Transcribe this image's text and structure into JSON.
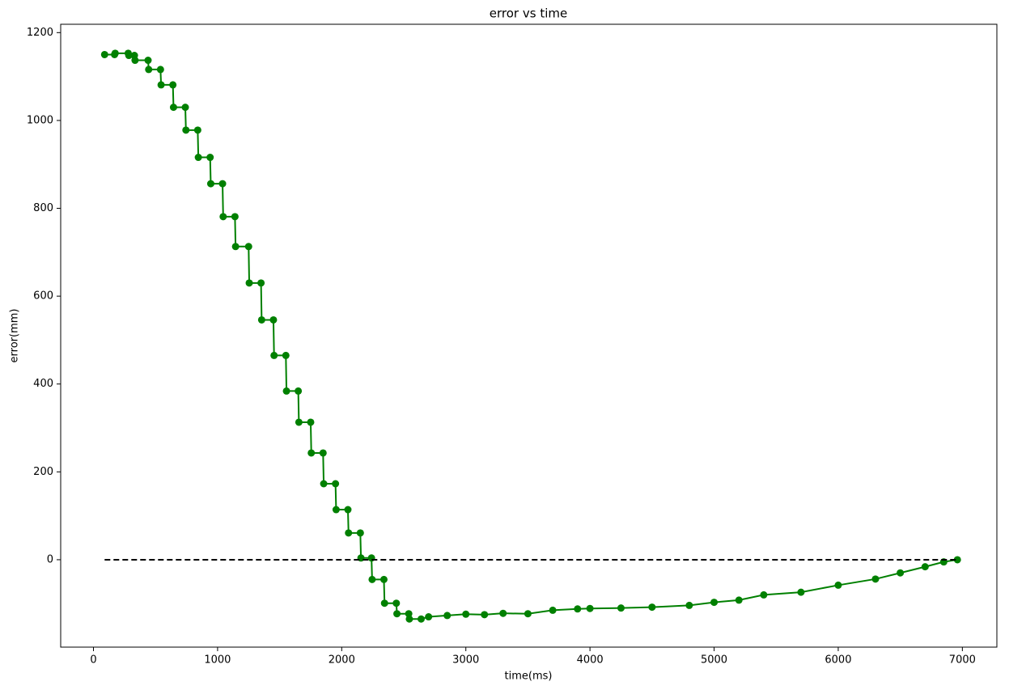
{
  "chart_data": {
    "type": "line",
    "title": "error vs time",
    "x_label": "time(ms)",
    "y_label": "error(mm)",
    "xlim": [
      -264,
      7278
    ],
    "ylim": [
      -199,
      1219
    ],
    "xticks": [
      0,
      1000,
      2000,
      3000,
      4000,
      5000,
      6000,
      7000
    ],
    "yticks": [
      0,
      200,
      400,
      600,
      800,
      1000,
      1200
    ],
    "series": [
      {
        "color": "#008000",
        "marker": true,
        "dashed": false,
        "x": [
          90,
          170,
          175,
          280,
          285,
          330,
          335,
          440,
          445,
          540,
          545,
          640,
          645,
          740,
          745,
          840,
          845,
          940,
          945,
          1040,
          1045,
          1140,
          1145,
          1250,
          1255,
          1350,
          1355,
          1450,
          1455,
          1550,
          1555,
          1650,
          1655,
          1750,
          1755,
          1850,
          1855,
          1950,
          1955,
          2050,
          2055,
          2150,
          2155,
          2240,
          2245,
          2340,
          2345,
          2440,
          2445,
          2540,
          2545,
          2640,
          2700,
          2850,
          3000,
          3150,
          3300,
          3500,
          3700,
          3900,
          4000,
          4250,
          4500,
          4800,
          5000,
          5200,
          5400,
          5700,
          6000,
          6300,
          6500,
          6700,
          6850,
          6960
        ],
        "values": [
          1150,
          1150,
          1153,
          1153,
          1148,
          1148,
          1137,
          1137,
          1116,
          1116,
          1081,
          1081,
          1030,
          1030,
          978,
          978,
          916,
          916,
          856,
          856,
          781,
          781,
          713,
          713,
          630,
          630,
          546,
          546,
          465,
          465,
          384,
          384,
          313,
          313,
          243,
          243,
          173,
          173,
          114,
          114,
          61,
          61,
          4,
          4,
          -45,
          -45,
          -99,
          -99,
          -123,
          -123,
          -135,
          -135,
          -130,
          -127,
          -124,
          -125,
          -122,
          -123,
          -115,
          -112,
          -111,
          -110,
          -108,
          -104,
          -97,
          -92,
          -80,
          -74,
          -58,
          -44,
          -30,
          -16,
          -5,
          0
        ]
      },
      {
        "color": "#000000",
        "marker": false,
        "dashed": true,
        "x": [
          90,
          6960
        ],
        "values": [
          0,
          0
        ]
      }
    ]
  }
}
